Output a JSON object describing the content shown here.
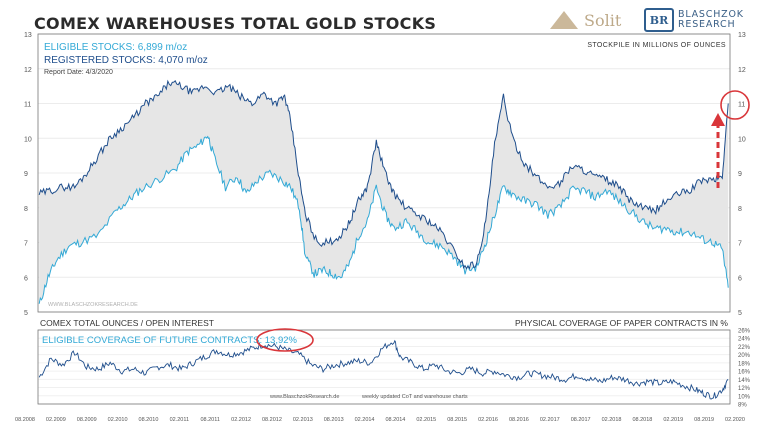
{
  "title": "COMEX WAREHOUSES  TOTAL GOLD STOCKS",
  "logos": {
    "solit": "Solit",
    "blaschzok_line1": "BLASCHZOK",
    "blaschzok_line2": "RESEARCH"
  },
  "watermark": "WWW.BLASCHZOKRESEARCH.DE",
  "footer_site": "www.BlaschzokResearch.de",
  "footer_note": "weekly updated CoT and warehouse charts",
  "colors": {
    "eligible": "#33a9d6",
    "registered": "#1f4e8c",
    "fill": "#e6e6e6",
    "accent_red": "#d9363a",
    "axis": "#555555"
  },
  "chart_data": [
    {
      "type": "line",
      "title": "COMEX WAREHOUSES  TOTAL GOLD STOCKS",
      "legend": [
        {
          "name": "ELIGIBLE STOCKS: 6,899 m/oz",
          "color": "#33a9d6"
        },
        {
          "name": "REGISTERED STOCKS: 4,070 m/oz",
          "color": "#1f4e8c"
        }
      ],
      "report_date": "Report Date: 4/3/2020",
      "ylabel": "STOCKPILE IN MILLIONS OF OUNCES",
      "ylim": [
        5,
        13
      ],
      "yticks": [
        5,
        6,
        7,
        8,
        9,
        10,
        11,
        12,
        13
      ],
      "xlim": [
        2008.58,
        2020.28
      ],
      "series": [
        {
          "name": "Lower line (light)",
          "color": "#33a9d6",
          "points": [
            [
              2008.6,
              5.2
            ],
            [
              2008.75,
              6.0
            ],
            [
              2008.9,
              6.5
            ],
            [
              2009.1,
              6.9
            ],
            [
              2009.3,
              7.0
            ],
            [
              2009.6,
              7.2
            ],
            [
              2009.9,
              7.9
            ],
            [
              2010.1,
              8.2
            ],
            [
              2010.3,
              8.5
            ],
            [
              2010.6,
              8.8
            ],
            [
              2010.9,
              9.1
            ],
            [
              2011.1,
              9.6
            ],
            [
              2011.3,
              9.8
            ],
            [
              2011.45,
              10.1
            ],
            [
              2011.55,
              9.5
            ],
            [
              2011.75,
              8.6
            ],
            [
              2011.95,
              8.9
            ],
            [
              2012.1,
              8.4
            ],
            [
              2012.3,
              8.8
            ],
            [
              2012.5,
              9.0
            ],
            [
              2012.7,
              8.8
            ],
            [
              2012.85,
              8.6
            ],
            [
              2013.0,
              8.0
            ],
            [
              2013.1,
              6.6
            ],
            [
              2013.25,
              6.1
            ],
            [
              2013.4,
              6.2
            ],
            [
              2013.55,
              6.1
            ],
            [
              2013.7,
              6.0
            ],
            [
              2013.85,
              6.4
            ],
            [
              2014.0,
              7.2
            ],
            [
              2014.15,
              7.6
            ],
            [
              2014.3,
              8.6
            ],
            [
              2014.45,
              7.8
            ],
            [
              2014.6,
              7.4
            ],
            [
              2014.8,
              7.6
            ],
            [
              2015.0,
              7.3
            ],
            [
              2015.2,
              7.0
            ],
            [
              2015.4,
              6.9
            ],
            [
              2015.6,
              6.6
            ],
            [
              2015.8,
              6.2
            ],
            [
              2016.0,
              6.3
            ],
            [
              2016.15,
              7.0
            ],
            [
              2016.3,
              7.8
            ],
            [
              2016.45,
              8.6
            ],
            [
              2016.6,
              8.4
            ],
            [
              2016.8,
              8.2
            ],
            [
              2017.0,
              8.1
            ],
            [
              2017.2,
              7.8
            ],
            [
              2017.4,
              8.0
            ],
            [
              2017.6,
              8.5
            ],
            [
              2017.8,
              8.5
            ],
            [
              2018.0,
              8.3
            ],
            [
              2018.2,
              8.5
            ],
            [
              2018.4,
              8.2
            ],
            [
              2018.6,
              7.9
            ],
            [
              2018.8,
              7.6
            ],
            [
              2019.0,
              7.4
            ],
            [
              2019.2,
              7.4
            ],
            [
              2019.4,
              7.3
            ],
            [
              2019.6,
              7.3
            ],
            [
              2019.8,
              7.1
            ],
            [
              2020.0,
              7.0
            ],
            [
              2020.15,
              6.8
            ],
            [
              2020.25,
              5.7
            ]
          ]
        },
        {
          "name": "Upper line (dark)",
          "color": "#1f4e8c",
          "points": [
            [
              2008.6,
              8.4
            ],
            [
              2008.8,
              8.5
            ],
            [
              2009.0,
              8.6
            ],
            [
              2009.2,
              8.6
            ],
            [
              2009.4,
              9.0
            ],
            [
              2009.6,
              9.5
            ],
            [
              2009.8,
              10.0
            ],
            [
              2010.0,
              10.3
            ],
            [
              2010.2,
              10.6
            ],
            [
              2010.4,
              11.0
            ],
            [
              2010.6,
              11.2
            ],
            [
              2010.8,
              11.6
            ],
            [
              2011.0,
              11.5
            ],
            [
              2011.2,
              11.3
            ],
            [
              2011.4,
              11.5
            ],
            [
              2011.6,
              11.3
            ],
            [
              2011.8,
              11.5
            ],
            [
              2012.0,
              11.2
            ],
            [
              2012.2,
              11.0
            ],
            [
              2012.4,
              11.3
            ],
            [
              2012.6,
              11.0
            ],
            [
              2012.75,
              11.2
            ],
            [
              2012.85,
              10.5
            ],
            [
              2013.0,
              8.8
            ],
            [
              2013.1,
              7.8
            ],
            [
              2013.3,
              7.0
            ],
            [
              2013.5,
              7.0
            ],
            [
              2013.7,
              7.2
            ],
            [
              2013.85,
              7.6
            ],
            [
              2014.0,
              8.2
            ],
            [
              2014.15,
              8.6
            ],
            [
              2014.3,
              9.9
            ],
            [
              2014.45,
              9.0
            ],
            [
              2014.6,
              8.4
            ],
            [
              2014.8,
              8.0
            ],
            [
              2015.0,
              7.8
            ],
            [
              2015.2,
              7.6
            ],
            [
              2015.4,
              7.3
            ],
            [
              2015.6,
              6.8
            ],
            [
              2015.8,
              6.3
            ],
            [
              2016.0,
              6.4
            ],
            [
              2016.15,
              7.6
            ],
            [
              2016.3,
              9.8
            ],
            [
              2016.45,
              11.2
            ],
            [
              2016.6,
              10.0
            ],
            [
              2016.8,
              9.3
            ],
            [
              2017.0,
              8.9
            ],
            [
              2017.2,
              8.6
            ],
            [
              2017.4,
              8.7
            ],
            [
              2017.6,
              9.2
            ],
            [
              2017.8,
              9.1
            ],
            [
              2018.0,
              8.9
            ],
            [
              2018.2,
              8.8
            ],
            [
              2018.4,
              8.6
            ],
            [
              2018.6,
              8.2
            ],
            [
              2018.8,
              8.0
            ],
            [
              2019.0,
              7.9
            ],
            [
              2019.2,
              8.2
            ],
            [
              2019.4,
              8.4
            ],
            [
              2019.6,
              8.5
            ],
            [
              2019.8,
              8.8
            ],
            [
              2020.0,
              8.8
            ],
            [
              2020.15,
              8.9
            ],
            [
              2020.25,
              11.0
            ]
          ]
        }
      ]
    },
    {
      "type": "line",
      "title": "COMEX TOTAL OUNCES / OPEN INTEREST",
      "ylabel": "PHYSICAL COVERAGE OF PAPER CONTRACTS IN %",
      "legend": [
        {
          "name": "ELIGIBLE COVERAGE OF FUTURE CONTRACTS: 13,92%",
          "color": "#1f4e8c"
        }
      ],
      "ylim": [
        8,
        26
      ],
      "yticks": [
        "8%",
        "10%",
        "12%",
        "14%",
        "16%",
        "18%",
        "20%",
        "22%",
        "24%",
        "26%"
      ],
      "xlim": [
        2008.58,
        2020.28
      ],
      "xtick_labels": [
        "08.2008",
        "02.2009",
        "08.2009",
        "02.2010",
        "08.2010",
        "02.2011",
        "08.2011",
        "02.2012",
        "08.2012",
        "02.2013",
        "08.2013",
        "02.2014",
        "08.2014",
        "02.2015",
        "08.2015",
        "02.2016",
        "08.2016",
        "02.2017",
        "08.2017",
        "02.2018",
        "08.2018",
        "02.2019",
        "08.2019",
        "02.2020"
      ],
      "series": [
        {
          "name": "ELIGIBLE COVERAGE OF FUTURE CONTRACTS",
          "color": "#1f4e8c",
          "points": [
            [
              2008.6,
              14.5
            ],
            [
              2008.8,
              19.0
            ],
            [
              2009.0,
              17.5
            ],
            [
              2009.2,
              20.5
            ],
            [
              2009.4,
              17.0
            ],
            [
              2009.6,
              16.5
            ],
            [
              2009.8,
              18.0
            ],
            [
              2010.0,
              16.0
            ],
            [
              2010.2,
              16.5
            ],
            [
              2010.4,
              15.5
            ],
            [
              2010.6,
              17.0
            ],
            [
              2010.8,
              17.5
            ],
            [
              2011.0,
              16.5
            ],
            [
              2011.2,
              18.0
            ],
            [
              2011.4,
              19.5
            ],
            [
              2011.6,
              21.0
            ],
            [
              2011.8,
              20.0
            ],
            [
              2012.0,
              20.5
            ],
            [
              2012.2,
              21.5
            ],
            [
              2012.4,
              22.5
            ],
            [
              2012.6,
              22.0
            ],
            [
              2012.8,
              21.0
            ],
            [
              2013.0,
              20.0
            ],
            [
              2013.2,
              17.5
            ],
            [
              2013.4,
              16.5
            ],
            [
              2013.6,
              17.5
            ],
            [
              2013.8,
              18.0
            ],
            [
              2014.0,
              18.5
            ],
            [
              2014.2,
              18.0
            ],
            [
              2014.4,
              21.5
            ],
            [
              2014.6,
              23.5
            ],
            [
              2014.7,
              19.5
            ],
            [
              2014.9,
              18.0
            ],
            [
              2015.1,
              16.5
            ],
            [
              2015.3,
              17.5
            ],
            [
              2015.5,
              16.0
            ],
            [
              2015.7,
              15.5
            ],
            [
              2015.9,
              16.5
            ],
            [
              2016.1,
              15.5
            ],
            [
              2016.3,
              16.0
            ],
            [
              2016.5,
              15.0
            ],
            [
              2016.7,
              14.5
            ],
            [
              2016.9,
              15.5
            ],
            [
              2017.1,
              15.0
            ],
            [
              2017.3,
              14.5
            ],
            [
              2017.5,
              14.0
            ],
            [
              2017.7,
              15.0
            ],
            [
              2017.9,
              14.0
            ],
            [
              2018.1,
              13.5
            ],
            [
              2018.3,
              14.5
            ],
            [
              2018.5,
              14.0
            ],
            [
              2018.7,
              13.0
            ],
            [
              2018.9,
              13.5
            ],
            [
              2019.1,
              13.0
            ],
            [
              2019.3,
              13.5
            ],
            [
              2019.5,
              12.5
            ],
            [
              2019.7,
              11.5
            ],
            [
              2019.85,
              10.5
            ],
            [
              2020.0,
              9.8
            ],
            [
              2020.15,
              11.5
            ],
            [
              2020.25,
              13.9
            ]
          ]
        }
      ]
    }
  ]
}
